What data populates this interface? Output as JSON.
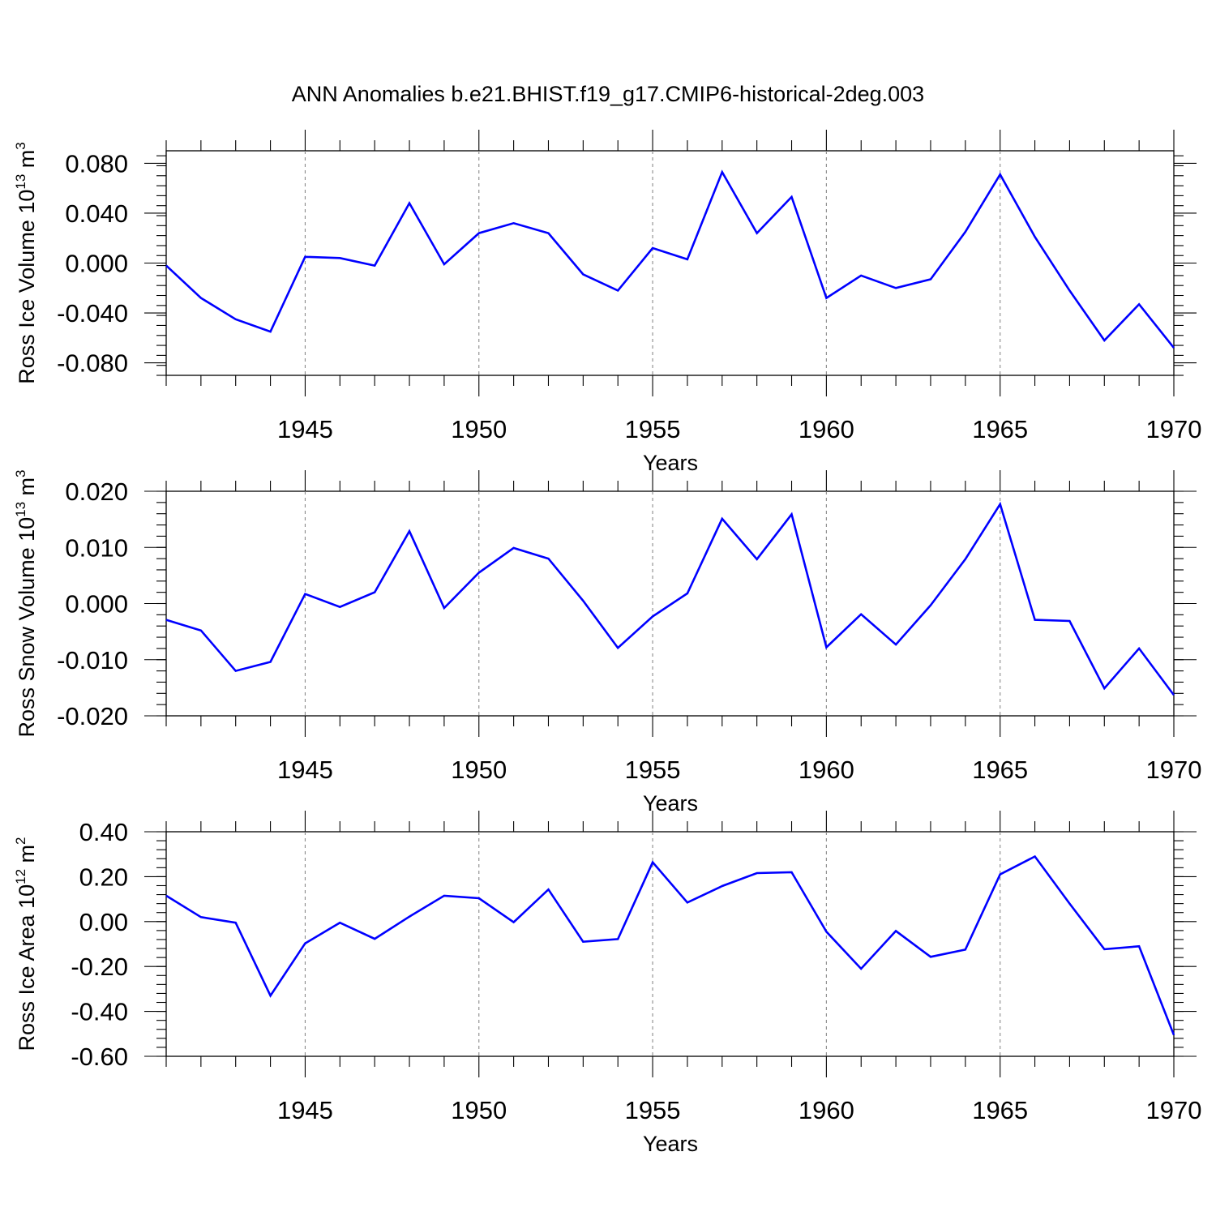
{
  "title": "ANN Anomalies b.e21.BHIST.f19_g17.CMIP6-historical-2deg.003",
  "colors": {
    "series": "#0000ff",
    "axes": "#000000",
    "grid": "#8a8a8a"
  },
  "chart_data": [
    {
      "type": "line",
      "ylabel": {
        "text": "Ross Ice Volume 10",
        "sup": "13",
        "unit": " m",
        "unit_sup": "3"
      },
      "xlabel": "Years",
      "xlim": [
        1941,
        1970
      ],
      "ylim": [
        -0.09,
        0.09
      ],
      "xticks": [
        1945,
        1950,
        1955,
        1960,
        1965,
        1970
      ],
      "xtick_labels": [
        "1945",
        "1950",
        "1955",
        "1960",
        "1965",
        "1970"
      ],
      "yticks": [
        -0.08,
        -0.04,
        0.0,
        0.04,
        0.08
      ],
      "ytick_labels": [
        "-0.080",
        "-0.040",
        "0.000",
        "0.040",
        "0.080"
      ],
      "grid": "vertical dashed at labeled years",
      "x": [
        1941,
        1942,
        1943,
        1944,
        1945,
        1946,
        1947,
        1948,
        1949,
        1950,
        1951,
        1952,
        1953,
        1954,
        1955,
        1956,
        1957,
        1958,
        1959,
        1960,
        1961,
        1962,
        1963,
        1964,
        1965,
        1966,
        1967,
        1968,
        1969,
        1970
      ],
      "values": [
        -0.002,
        -0.028,
        -0.045,
        -0.055,
        0.005,
        0.004,
        -0.002,
        0.048,
        -0.001,
        0.024,
        0.032,
        0.024,
        -0.009,
        -0.022,
        0.012,
        0.003,
        0.073,
        0.024,
        0.053,
        -0.028,
        -0.01,
        -0.02,
        -0.013,
        0.025,
        0.071,
        0.021,
        -0.022,
        -0.062,
        -0.033,
        -0.068
      ]
    },
    {
      "type": "line",
      "ylabel": {
        "text": "Ross Snow Volume 10",
        "sup": "13",
        "unit": " m",
        "unit_sup": "3"
      },
      "xlabel": "Years",
      "xlim": [
        1941,
        1970
      ],
      "ylim": [
        -0.02,
        0.02
      ],
      "xticks": [
        1945,
        1950,
        1955,
        1960,
        1965,
        1970
      ],
      "xtick_labels": [
        "1945",
        "1950",
        "1955",
        "1960",
        "1965",
        "1970"
      ],
      "yticks": [
        -0.02,
        -0.01,
        0.0,
        0.01,
        0.02
      ],
      "ytick_labels": [
        "-0.020",
        "-0.010",
        "0.000",
        "0.010",
        "0.020"
      ],
      "grid": "vertical dashed at labeled years",
      "x": [
        1941,
        1942,
        1943,
        1944,
        1945,
        1946,
        1947,
        1948,
        1949,
        1950,
        1951,
        1952,
        1953,
        1954,
        1955,
        1956,
        1957,
        1958,
        1959,
        1960,
        1961,
        1962,
        1963,
        1964,
        1965,
        1966,
        1967,
        1968,
        1969,
        1970
      ],
      "values": [
        -0.0029,
        -0.0048,
        -0.012,
        -0.0104,
        0.0017,
        -0.0006,
        0.002,
        0.0129,
        -0.0008,
        0.0055,
        0.0099,
        0.008,
        0.0005,
        -0.0079,
        -0.0023,
        0.0018,
        0.0151,
        0.0079,
        0.0159,
        -0.0078,
        -0.0019,
        -0.0073,
        -0.0003,
        0.0079,
        0.0177,
        -0.0029,
        -0.0031,
        -0.0151,
        -0.008,
        -0.0163
      ]
    },
    {
      "type": "line",
      "ylabel": {
        "text": "Ross Ice Area 10",
        "sup": "12",
        "unit": " m",
        "unit_sup": "2"
      },
      "xlabel": "Years",
      "xlim": [
        1941,
        1970
      ],
      "ylim": [
        -0.6,
        0.4
      ],
      "xticks": [
        1945,
        1950,
        1955,
        1960,
        1965,
        1970
      ],
      "xtick_labels": [
        "1945",
        "1950",
        "1955",
        "1960",
        "1965",
        "1970"
      ],
      "yticks": [
        -0.6,
        -0.4,
        -0.2,
        0.0,
        0.2,
        0.4
      ],
      "ytick_labels": [
        "-0.60",
        "-0.40",
        "-0.20",
        "0.00",
        "0.20",
        "0.40"
      ],
      "grid": "vertical dashed at labeled years",
      "x": [
        1941,
        1942,
        1943,
        1944,
        1945,
        1946,
        1947,
        1948,
        1949,
        1950,
        1951,
        1952,
        1953,
        1954,
        1955,
        1956,
        1957,
        1958,
        1959,
        1960,
        1961,
        1962,
        1963,
        1964,
        1965,
        1966,
        1967,
        1968,
        1969,
        1970
      ],
      "values": [
        0.115,
        0.02,
        -0.005,
        -0.33,
        -0.097,
        -0.005,
        -0.077,
        0.022,
        0.115,
        0.104,
        -0.003,
        0.143,
        -0.09,
        -0.078,
        0.264,
        0.085,
        0.158,
        0.216,
        0.22,
        -0.045,
        -0.21,
        -0.042,
        -0.157,
        -0.125,
        0.21,
        0.29,
        0.08,
        -0.123,
        -0.11,
        -0.505
      ]
    }
  ]
}
